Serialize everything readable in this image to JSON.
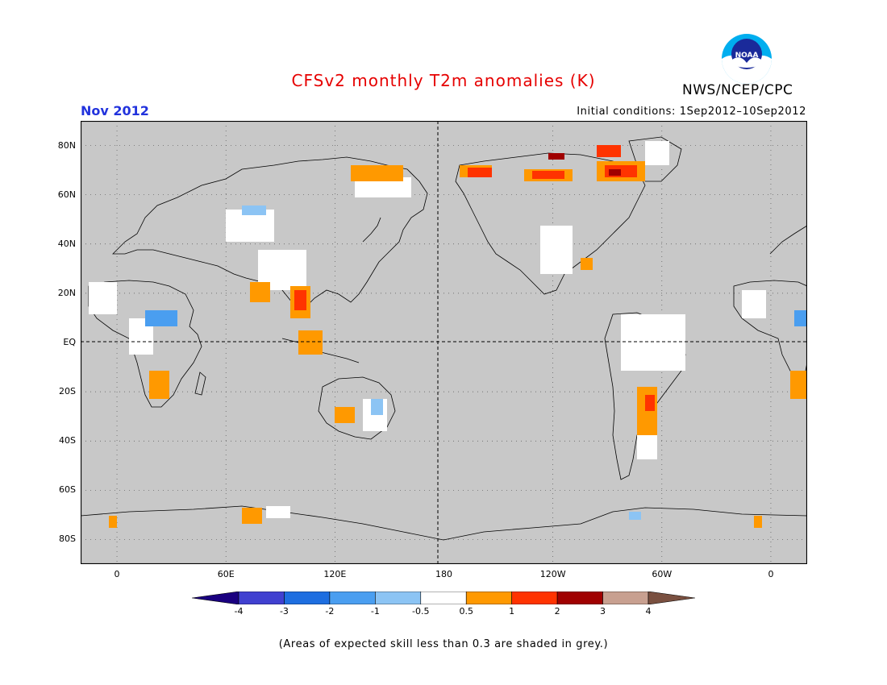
{
  "title": "CFSv2 monthly T2m anomalies (K)",
  "organization": "NWS/NCEP/CPC",
  "logo_text": "NOAA",
  "valid_month": "Nov 2012",
  "initial_conditions": "Initial conditions: 1Sep2012–10Sep2012",
  "footnote": "(Areas of expected skill less than 0.3 are shaded in grey.)",
  "map": {
    "projection": "cylindrical-equidistant",
    "lon_range": [
      -20,
      380
    ],
    "lat_range": [
      -90,
      90
    ],
    "background_color": "#c8c8c8",
    "lat_labels": [
      {
        "lat": 80,
        "label": "80N"
      },
      {
        "lat": 60,
        "label": "60N"
      },
      {
        "lat": 40,
        "label": "40N"
      },
      {
        "lat": 20,
        "label": "20N"
      },
      {
        "lat": 0,
        "label": "EQ"
      },
      {
        "lat": -20,
        "label": "20S"
      },
      {
        "lat": -40,
        "label": "40S"
      },
      {
        "lat": -60,
        "label": "60S"
      },
      {
        "lat": -80,
        "label": "80S"
      }
    ],
    "lon_labels": [
      {
        "lon": 0,
        "label": "0"
      },
      {
        "lon": 60,
        "label": "60E"
      },
      {
        "lon": 120,
        "label": "120E"
      },
      {
        "lon": 180,
        "label": "180"
      },
      {
        "lon": 240,
        "label": "120W"
      },
      {
        "lon": 300,
        "label": "60W"
      },
      {
        "lon": 360,
        "label": "0"
      }
    ]
  },
  "colorbar": {
    "boundaries": [
      "-4",
      "-3",
      "-2",
      "-1",
      "-0.5",
      "0.5",
      "1",
      "2",
      "3",
      "4"
    ],
    "colors": [
      "#1a0080",
      "#4040d0",
      "#1e6ee0",
      "#4a9ef0",
      "#8cc4f4",
      "#ffffff",
      "#ff9900",
      "#ff3300",
      "#a00000",
      "#c8a090",
      "#7a5040"
    ]
  }
}
